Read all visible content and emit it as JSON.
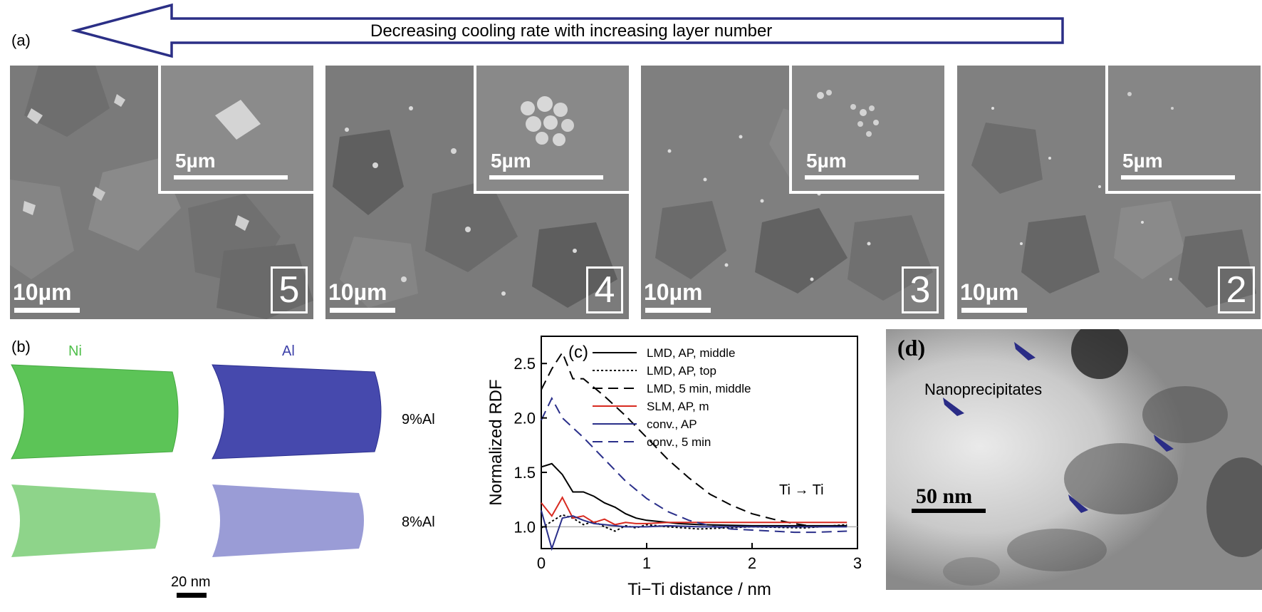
{
  "figure": {
    "arrow_caption": "Decreasing cooling rate with increasing layer number",
    "panel_a": {
      "label": "(a)",
      "tiles": [
        {
          "layer": "5",
          "scale_main": "10µm",
          "scale_inset": "5µm"
        },
        {
          "layer": "4",
          "scale_main": "10µm",
          "scale_inset": "5µm"
        },
        {
          "layer": "3",
          "scale_main": "10µm",
          "scale_inset": "5µm"
        },
        {
          "layer": "2",
          "scale_main": "10µm",
          "scale_inset": "5µm"
        }
      ]
    },
    "panel_b": {
      "label": "(b)",
      "element_ni": "Ni",
      "element_al": "Al",
      "row1_label": "9%Al",
      "row2_label": "8%Al",
      "scale": "20 nm",
      "colors": {
        "ni": "#4fbf4a",
        "al": "#3b3fa8"
      }
    },
    "panel_c": {
      "label": "(c)",
      "annotation": "Ti → Ti"
    },
    "panel_d": {
      "label": "(d)",
      "annotation": "Nanoprecipitates",
      "scale": "50 nm"
    }
  },
  "chart_data": {
    "type": "line",
    "xlabel": "Ti−Ti distance / nm",
    "ylabel": "Normalized RDF",
    "xlim": [
      0,
      3
    ],
    "ylim": [
      0.8,
      2.75
    ],
    "xticks": [
      0,
      1,
      2,
      3
    ],
    "yticks": [
      1.0,
      1.5,
      2.0,
      2.5
    ],
    "reference_line": 1.0,
    "legend_position": "top-right",
    "series": [
      {
        "name": "LMD, AP, middle",
        "color": "#000000",
        "dash": "solid",
        "x": [
          0,
          0.1,
          0.2,
          0.3,
          0.4,
          0.5,
          0.6,
          0.7,
          0.8,
          0.9,
          1.0,
          1.1,
          1.2,
          1.3,
          1.5,
          2.0,
          2.5,
          2.9
        ],
        "y": [
          1.55,
          1.58,
          1.48,
          1.32,
          1.32,
          1.28,
          1.22,
          1.18,
          1.12,
          1.08,
          1.06,
          1.05,
          1.04,
          1.03,
          1.02,
          1.01,
          1.01,
          1.01
        ]
      },
      {
        "name": "LMD, AP, top",
        "color": "#000000",
        "dash": "dotted",
        "x": [
          0,
          0.1,
          0.2,
          0.3,
          0.4,
          0.5,
          0.6,
          0.7,
          0.8,
          0.9,
          1.0,
          1.2,
          1.5,
          2.0,
          2.5,
          2.9
        ],
        "y": [
          0.99,
          1.05,
          1.11,
          1.08,
          1.02,
          1.05,
          1.0,
          0.96,
          1.01,
          0.99,
          1.02,
          1.0,
          0.98,
          1.0,
          0.99,
          1.02
        ]
      },
      {
        "name": "LMD, 5 min, middle",
        "color": "#000000",
        "dash": "long-dash",
        "x": [
          0,
          0.1,
          0.2,
          0.3,
          0.4,
          0.6,
          0.8,
          1.0,
          1.2,
          1.4,
          1.6,
          1.8,
          2.0,
          2.2,
          2.4,
          2.6,
          2.9
        ],
        "y": [
          2.26,
          2.45,
          2.6,
          2.36,
          2.36,
          2.2,
          2.02,
          1.82,
          1.62,
          1.45,
          1.3,
          1.2,
          1.12,
          1.07,
          1.03,
          1.0,
          1.01
        ]
      },
      {
        "name": "SLM, AP, m",
        "color": "#d82a20",
        "dash": "solid",
        "x": [
          0,
          0.1,
          0.2,
          0.3,
          0.4,
          0.5,
          0.6,
          0.7,
          0.8,
          0.9,
          1.0,
          1.2,
          1.5,
          2.0,
          2.5,
          2.9
        ],
        "y": [
          1.22,
          1.1,
          1.27,
          1.08,
          1.1,
          1.04,
          1.07,
          1.02,
          1.04,
          1.03,
          1.03,
          1.04,
          1.04,
          1.04,
          1.04,
          1.04
        ]
      },
      {
        "name": "conv., AP",
        "color": "#2a2f8a",
        "dash": "solid",
        "x": [
          0,
          0.1,
          0.2,
          0.3,
          0.4,
          0.5,
          0.6,
          0.8,
          1.0,
          1.2,
          1.5,
          2.0,
          2.5,
          2.9
        ],
        "y": [
          1.15,
          0.8,
          1.08,
          1.1,
          1.06,
          1.03,
          1.02,
          1.0,
          1.0,
          1.01,
          1.0,
          1.0,
          1.0,
          1.0
        ]
      },
      {
        "name": "conv., 5 min",
        "color": "#2a2f8a",
        "dash": "long-dash",
        "x": [
          0,
          0.1,
          0.2,
          0.4,
          0.6,
          0.8,
          1.0,
          1.2,
          1.4,
          1.6,
          1.8,
          2.0,
          2.2,
          2.4,
          2.6,
          2.9
        ],
        "y": [
          1.98,
          2.18,
          2.0,
          1.82,
          1.62,
          1.42,
          1.26,
          1.14,
          1.06,
          1.01,
          0.98,
          0.97,
          0.96,
          0.95,
          0.95,
          0.96
        ]
      }
    ]
  }
}
